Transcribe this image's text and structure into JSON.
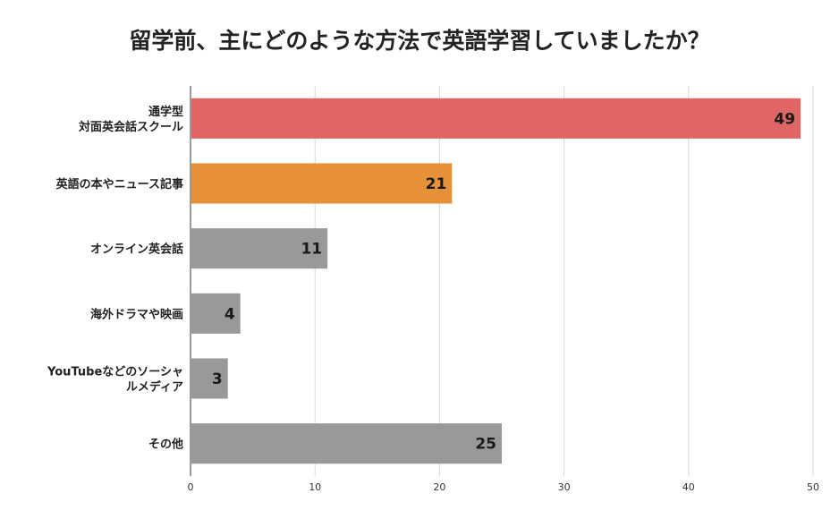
{
  "chart_data": {
    "type": "bar",
    "orientation": "horizontal",
    "title": "留学前、主にどのような方法で英語学習していましたか？",
    "categories": [
      [
        "通学型",
        "対面英会話スクール"
      ],
      [
        "英語の本やニュース記事"
      ],
      [
        "オンライン英会話"
      ],
      [
        "海外ドラマや映画"
      ],
      [
        "YouTubeなどのソーシャ",
        "ルメディア"
      ],
      [
        "その他"
      ]
    ],
    "values": [
      49,
      21,
      11,
      4,
      3,
      25
    ],
    "value_labels": [
      "49",
      "21",
      "11",
      "4",
      "3",
      "25"
    ],
    "colors": [
      "#e06666",
      "#e69138",
      "#999999",
      "#999999",
      "#999999",
      "#999999"
    ],
    "xlim": [
      0,
      50
    ],
    "xticks": [
      0,
      10,
      20,
      30,
      40,
      50
    ],
    "grid": "vertical",
    "legend": "none",
    "xlabel": "",
    "ylabel": ""
  }
}
